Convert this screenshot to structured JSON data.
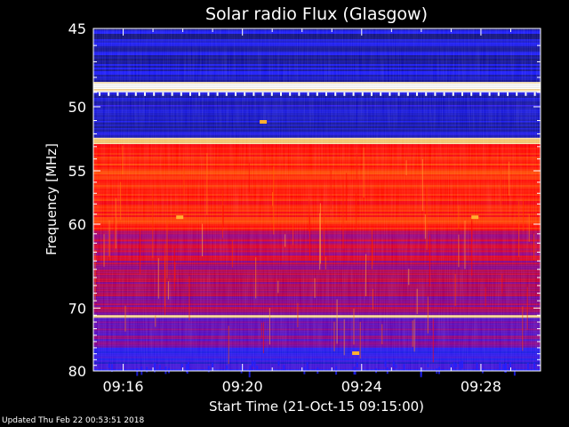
{
  "chart_data": {
    "type": "heatmap",
    "title": "Solar radio Flux (Glasgow)",
    "xlabel": "Start Time (21-Oct-15 09:15:00)",
    "ylabel": "Frequency [MHz]",
    "x_ticks": [
      "09:16",
      "09:20",
      "09:24",
      "09:28"
    ],
    "x_tick_minutes": [
      1,
      5,
      9,
      13
    ],
    "xlim_minutes": [
      0,
      15
    ],
    "y_ticks": [
      45,
      50,
      55,
      60,
      70,
      80
    ],
    "ylim": [
      45,
      80
    ],
    "y_scale": "reciprocal",
    "colormap": [
      "#0a0a5a",
      "#1a1aff",
      "#8000a0",
      "#ff0000",
      "#ff6a00",
      "#ffcc66",
      "#ffffff"
    ],
    "bands": [
      {
        "from": 45,
        "to": 48.3,
        "level": 0.1
      },
      {
        "from": 48.3,
        "to": 49.0,
        "level": 0.95
      },
      {
        "from": 49.0,
        "to": 52.3,
        "level": 0.12
      },
      {
        "from": 52.3,
        "to": 52.8,
        "level": 0.9
      },
      {
        "from": 52.8,
        "to": 60.5,
        "level": 0.55
      },
      {
        "from": 60.5,
        "to": 64.0,
        "level": 0.42
      },
      {
        "from": 64.0,
        "to": 71.0,
        "level": 0.38
      },
      {
        "from": 71.0,
        "to": 71.4,
        "level": 0.92
      },
      {
        "from": 71.4,
        "to": 76.0,
        "level": 0.3
      },
      {
        "from": 76.0,
        "to": 80.0,
        "level": 0.18
      }
    ]
  },
  "footer": {
    "updated": "Updated Thu Feb 22 00:53:51 2018"
  }
}
